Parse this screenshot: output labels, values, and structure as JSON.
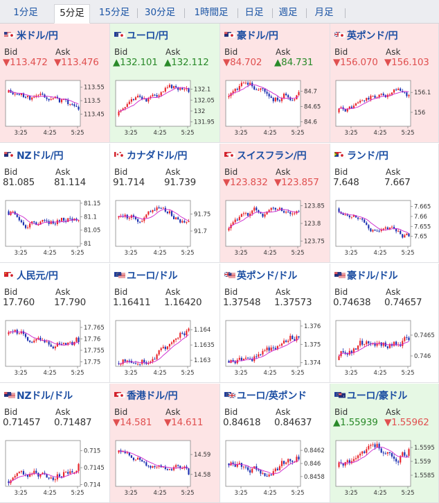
{
  "tabs": [
    {
      "label": "1分足",
      "name": "tab-1min"
    },
    {
      "label": "5分足",
      "name": "tab-5min",
      "active": true
    },
    {
      "label": "15分足",
      "name": "tab-15min"
    },
    {
      "label": "30分足",
      "name": "tab-30min"
    },
    {
      "label": "1時間足",
      "name": "tab-1hour"
    },
    {
      "label": "日足",
      "name": "tab-daily"
    },
    {
      "label": "週足",
      "name": "tab-weekly"
    },
    {
      "label": "月足",
      "name": "tab-monthly"
    }
  ],
  "labels": {
    "bid": "Bid",
    "ask": "Ask"
  },
  "colors": {
    "up": "#2a8a2a",
    "down": "#e05050",
    "up_bg": "#e6f8e4",
    "down_bg": "#fde4e5",
    "candle_up": "#e8242a",
    "candle_down": "#1a2fb0",
    "ma": "#cc22cc"
  },
  "pairs": [
    {
      "name": "米ドル/円",
      "flags": [
        "us-flag-icon",
        "jp-flag-icon"
      ],
      "trend": "down",
      "bid": "▼113.472",
      "ask": "▼113.476",
      "bid_dir": "down",
      "ask_dir": "down",
      "y_ticks": [
        "113.55",
        "113.5",
        "113.45"
      ],
      "ylim": [
        113.405,
        113.575
      ],
      "seed": 11,
      "start": 113.53,
      "end": 113.47,
      "vol": 0.012
    },
    {
      "name": "ユーロ/円",
      "flags": [
        "eu-flag-icon",
        "jp-flag-icon"
      ],
      "trend": "up",
      "bid": "▲132.101",
      "ask": "▲132.112",
      "bid_dir": "up",
      "ask_dir": "up",
      "y_ticks": [
        "132.1",
        "132.05",
        "132",
        "131.95"
      ],
      "ylim": [
        131.93,
        132.14
      ],
      "seed": 23,
      "start": 131.98,
      "end": 132.1,
      "vol": 0.015
    },
    {
      "name": "豪ドル/円",
      "flags": [
        "au-flag-icon",
        "jp-flag-icon"
      ],
      "trend": "down",
      "bid": "▼84.702",
      "ask": "▲84.731",
      "bid_dir": "down",
      "ask_dir": "up",
      "y_ticks": [
        "84.7",
        "84.65",
        "84.6"
      ],
      "ylim": [
        84.585,
        84.735
      ],
      "seed": 37,
      "start": 84.68,
      "end": 84.7,
      "vol": 0.012
    },
    {
      "name": "英ポンド/円",
      "flags": [
        "uk-flag-icon",
        "jp-flag-icon"
      ],
      "trend": "down",
      "bid": "▼156.070",
      "ask": "▼156.103",
      "bid_dir": "down",
      "ask_dir": "down",
      "y_ticks": [
        "156.1",
        "156"
      ],
      "ylim": [
        155.93,
        156.16
      ],
      "seed": 41,
      "start": 156.0,
      "end": 156.08,
      "vol": 0.016
    },
    {
      "name": "NZドル/円",
      "flags": [
        "nz-flag-icon",
        "jp-flag-icon"
      ],
      "trend": "flat",
      "bid": "81.085",
      "ask": "81.114",
      "bid_dir": "flat",
      "ask_dir": "flat",
      "y_ticks": [
        "81.15",
        "81.1",
        "81.05",
        "81"
      ],
      "ylim": [
        80.99,
        81.16
      ],
      "seed": 53,
      "start": 81.12,
      "end": 81.09,
      "vol": 0.012
    },
    {
      "name": "カナダドル/円",
      "flags": [
        "ca-flag-icon",
        "jp-flag-icon"
      ],
      "trend": "flat",
      "bid": "91.714",
      "ask": "91.739",
      "bid_dir": "flat",
      "ask_dir": "flat",
      "y_ticks": [
        "91.75",
        "91.7"
      ],
      "ylim": [
        91.655,
        91.79
      ],
      "seed": 61,
      "start": 91.74,
      "end": 91.72,
      "vol": 0.01
    },
    {
      "name": "スイスフラン/円",
      "flags": [
        "ch-flag-icon",
        "jp-flag-icon"
      ],
      "trend": "down",
      "bid": "▼123.832",
      "ask": "▼123.857",
      "bid_dir": "down",
      "ask_dir": "down",
      "y_ticks": [
        "123.85",
        "123.8",
        "123.75"
      ],
      "ylim": [
        123.735,
        123.865
      ],
      "seed": 73,
      "start": 123.78,
      "end": 123.83,
      "vol": 0.01
    },
    {
      "name": "ランド/円",
      "flags": [
        "za-flag-icon",
        "jp-flag-icon"
      ],
      "trend": "flat",
      "bid": "7.648",
      "ask": "7.667",
      "bid_dir": "flat",
      "ask_dir": "flat",
      "y_ticks": [
        "7.665",
        "7.66",
        "7.655",
        "7.65"
      ],
      "ylim": [
        7.645,
        7.668
      ],
      "seed": 83,
      "start": 7.664,
      "end": 7.649,
      "vol": 0.0015
    },
    {
      "name": "人民元/円",
      "flags": [
        "cn-flag-icon",
        "jp-flag-icon"
      ],
      "trend": "flat",
      "bid": "17.760",
      "ask": "17.790",
      "bid_dir": "flat",
      "ask_dir": "flat",
      "y_ticks": [
        "17.765",
        "17.76",
        "17.755",
        "17.75"
      ],
      "ylim": [
        17.748,
        17.768
      ],
      "seed": 97,
      "start": 17.762,
      "end": 17.76,
      "vol": 0.0015
    },
    {
      "name": "ユーロ/ドル",
      "flags": [
        "eu-flag-icon",
        "us-flag-icon"
      ],
      "trend": "flat",
      "bid": "1.16411",
      "ask": "1.16420",
      "bid_dir": "flat",
      "ask_dir": "flat",
      "y_ticks": [
        "1.164",
        "1.1635",
        "1.163"
      ],
      "ylim": [
        1.1628,
        1.1643
      ],
      "seed": 101,
      "start": 1.1629,
      "end": 1.1641,
      "vol": 0.00012
    },
    {
      "name": "英ポンド/ドル",
      "flags": [
        "uk-flag-icon",
        "us-flag-icon"
      ],
      "trend": "flat",
      "bid": "1.37548",
      "ask": "1.37573",
      "bid_dir": "flat",
      "ask_dir": "flat",
      "y_ticks": [
        "1.376",
        "1.375",
        "1.374"
      ],
      "ylim": [
        1.3738,
        1.3763
      ],
      "seed": 113,
      "start": 1.3741,
      "end": 1.3756,
      "vol": 0.0002
    },
    {
      "name": "豪ドル/ドル",
      "flags": [
        "au-flag-icon",
        "us-flag-icon"
      ],
      "trend": "flat",
      "bid": "0.74638",
      "ask": "0.74657",
      "bid_dir": "flat",
      "ask_dir": "flat",
      "y_ticks": [
        "0.7465",
        "0.746"
      ],
      "ylim": [
        0.74575,
        0.74685
      ],
      "seed": 127,
      "start": 0.7459,
      "end": 0.7464,
      "vol": 0.0001
    },
    {
      "name": "NZドル/ドル",
      "flags": [
        "nz-flag-icon",
        "us-flag-icon"
      ],
      "trend": "flat",
      "bid": "0.71457",
      "ask": "0.71487",
      "bid_dir": "flat",
      "ask_dir": "flat",
      "y_ticks": [
        "0.715",
        "0.7145",
        "0.714"
      ],
      "ylim": [
        0.71395,
        0.7153
      ],
      "seed": 131,
      "start": 0.7141,
      "end": 0.7146,
      "vol": 0.00011
    },
    {
      "name": "香港ドル/円",
      "flags": [
        "hk-flag-icon",
        "jp-flag-icon"
      ],
      "trend": "down",
      "bid": "▼14.581",
      "ask": "▼14.611",
      "bid_dir": "down",
      "ask_dir": "down",
      "y_ticks": [
        "14.59",
        "14.58"
      ],
      "ylim": [
        14.574,
        14.597
      ],
      "seed": 139,
      "start": 14.591,
      "end": 14.581,
      "vol": 0.0015
    },
    {
      "name": "ユーロ/英ポンド",
      "flags": [
        "eu-flag-icon",
        "uk-flag-icon"
      ],
      "trend": "flat",
      "bid": "0.84618",
      "ask": "0.84637",
      "bid_dir": "flat",
      "ask_dir": "flat",
      "y_ticks": [
        "0.8462",
        "0.846",
        "0.8458"
      ],
      "ylim": [
        0.84565,
        0.84635
      ],
      "seed": 149,
      "start": 0.846,
      "end": 0.8461,
      "vol": 6e-05
    },
    {
      "name": "ユーロ/豪ドル",
      "flags": [
        "eu-flag-icon",
        "au-flag-icon"
      ],
      "trend": "up",
      "bid": "▲1.55939",
      "ask": "▼1.55962",
      "bid_dir": "up",
      "ask_dir": "down",
      "y_ticks": [
        "1.5595",
        "1.559",
        "1.5585"
      ],
      "ylim": [
        1.5581,
        1.55975
      ],
      "seed": 157,
      "start": 1.5588,
      "end": 1.5594,
      "vol": 0.00015
    }
  ],
  "x_ticks": [
    "3:25",
    "4:25",
    "5:25"
  ]
}
